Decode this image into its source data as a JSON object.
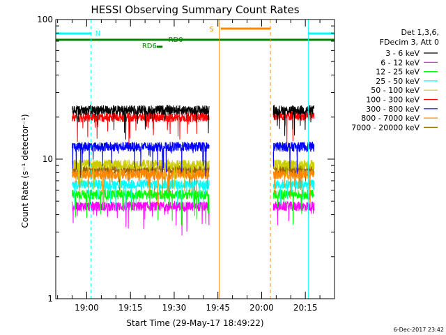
{
  "chart_data": {
    "type": "line",
    "title": "HESSI Observing Summary Count Rates",
    "xlabel": "Start Time (29-May-17 18:49:22)",
    "ylabel": "Count Rate (s⁻¹ detector⁻¹)",
    "x_unit": "UT time",
    "xlim": [
      "18:49:22",
      "20:25:00"
    ],
    "ylim": [
      1,
      100
    ],
    "yscale": "log",
    "x_ticks": [
      "19:00",
      "19:15",
      "19:30",
      "19:45",
      "20:00",
      "20:15"
    ],
    "y_ticks": [
      "1",
      "10",
      "100"
    ],
    "grid": false,
    "legend_position": "right",
    "legend_header": [
      "Det 1,3,6,",
      "FDecim 3, Att 0"
    ],
    "data_segments": [
      {
        "start": "18:55:00",
        "end": "19:42:00"
      },
      {
        "start": "20:04:00",
        "end": "20:18:00"
      }
    ],
    "series": [
      {
        "name": "3 - 6 keV",
        "color": "#000000",
        "values": [
          22.5,
          22.5
        ]
      },
      {
        "name": "6 - 12 keV",
        "color": "#ff00ff",
        "values": [
          4.6,
          4.6
        ]
      },
      {
        "name": "12 - 25 keV",
        "color": "#00ff00",
        "values": [
          5.6,
          5.6
        ]
      },
      {
        "name": "25 - 50 keV",
        "color": "#00ffff",
        "values": [
          6.6,
          6.6
        ]
      },
      {
        "name": "50 - 100 keV",
        "color": "#cccc00",
        "values": [
          9.2,
          9.2
        ]
      },
      {
        "name": "100 - 300 keV",
        "color": "#ff0000",
        "values": [
          20.0,
          20.5
        ]
      },
      {
        "name": "300 - 800 keV",
        "color": "#0000ff",
        "values": [
          12.3,
          12.3
        ]
      },
      {
        "name": "800 - 7000 keV",
        "color": "#ff8800",
        "values": [
          7.8,
          7.8
        ]
      },
      {
        "name": "7000 - 20000 keV",
        "color": "#996600",
        "values": [
          8.4,
          8.4
        ]
      }
    ],
    "annotations": {
      "night": [
        {
          "label": "N",
          "start": "18:49:22",
          "end": "19:01:30",
          "color": "#00ffff"
        },
        {
          "label": "",
          "start": "20:16:00",
          "end": "20:25:00",
          "color": "#00ffff"
        }
      ],
      "saa": {
        "label": "S",
        "start": "19:45:30",
        "end": "20:03:00",
        "color": "#ff8800"
      },
      "attenuator_bar": {
        "start": "18:49:22",
        "end": "20:25:00",
        "color": "#008000"
      },
      "rd_labels": [
        {
          "label": "RD0",
          "time": "19:28:00"
        },
        {
          "label": "RD6",
          "time": "19:24:00"
        }
      ]
    },
    "date_stamp": "6-Dec-2017 23:42"
  }
}
